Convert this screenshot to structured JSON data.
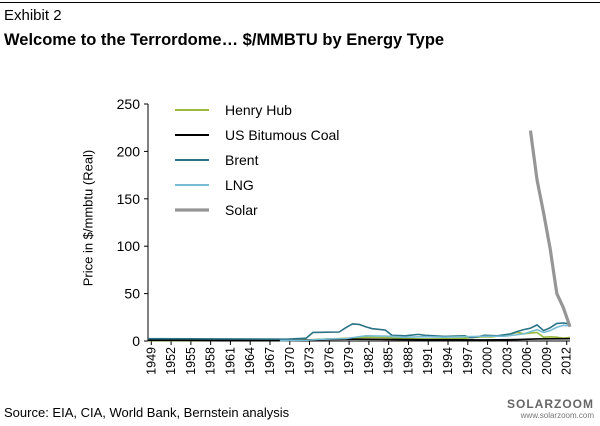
{
  "header": {
    "exhibit": "Exhibit 2",
    "title": "Welcome to the Terrordome… $/MMBTU by Energy Type"
  },
  "footer": {
    "source": "Source: EIA, CIA, World Bank, Bernstein analysis",
    "watermark_brand": "SOLARZOOM",
    "watermark_url": "www.solarzoom.com"
  },
  "chart_data": {
    "type": "line",
    "title": "Welcome to the Terrordome… $/MMBTU by Energy Type",
    "xlabel": "",
    "ylabel": "Price in $/mmbtu (Real)",
    "ylim": [
      0,
      250
    ],
    "yticks": [
      0,
      50,
      100,
      150,
      200,
      250
    ],
    "xlim": [
      1949,
      2013
    ],
    "xticks": [
      1949,
      1952,
      1955,
      1958,
      1961,
      1964,
      1967,
      1970,
      1973,
      1976,
      1979,
      1982,
      1985,
      1988,
      1991,
      1994,
      1997,
      2000,
      2003,
      2006,
      2009,
      2012
    ],
    "grid": false,
    "legend_position": "top-left",
    "series": [
      {
        "name": "Henry Hub",
        "color": "#9aba3c",
        "x": [
          1949,
          1955,
          1960,
          1965,
          1970,
          1973,
          1976,
          1979,
          1982,
          1985,
          1988,
          1991,
          1994,
          1997,
          2000,
          2001,
          2003,
          2005,
          2006,
          2008,
          2009,
          2010,
          2011,
          2012,
          2013
        ],
        "y": [
          0.5,
          0.6,
          0.8,
          0.9,
          1.0,
          1.2,
          2.0,
          2.8,
          3.9,
          3.6,
          2.6,
          2.1,
          2.3,
          2.9,
          4.5,
          4.3,
          6.0,
          9.0,
          7.7,
          9.0,
          4.0,
          4.4,
          4.0,
          2.8,
          3.8
        ]
      },
      {
        "name": "US Bitumous Coal",
        "color": "#000000",
        "x": [
          1949,
          1960,
          1970,
          1973,
          1976,
          1980,
          1985,
          1990,
          1995,
          2000,
          2005,
          2008,
          2010,
          2013
        ],
        "y": [
          0.9,
          0.8,
          0.8,
          1.0,
          1.6,
          1.9,
          1.7,
          1.4,
          1.2,
          1.1,
          1.5,
          2.2,
          2.3,
          2.4
        ]
      },
      {
        "name": "Brent",
        "color": "#2a7285",
        "x": [
          1949,
          1955,
          1960,
          1965,
          1970,
          1973,
          1974,
          1978,
          1979,
          1980,
          1981,
          1982,
          1983,
          1985,
          1986,
          1988,
          1990,
          1991,
          1994,
          1997,
          1998,
          1999,
          2000,
          2002,
          2003,
          2004,
          2005,
          2006,
          2007,
          2008,
          2009,
          2010,
          2011,
          2012,
          2013
        ],
        "y": [
          2.4,
          2.3,
          2.2,
          2.0,
          1.9,
          3.0,
          9.0,
          9.5,
          14.0,
          18.0,
          17.5,
          15.0,
          13.0,
          11.5,
          6.0,
          5.5,
          7.0,
          6.0,
          4.8,
          5.5,
          3.5,
          4.5,
          6.0,
          5.5,
          6.5,
          7.5,
          10.0,
          12.0,
          13.5,
          17.0,
          11.0,
          14.0,
          18.5,
          19.0,
          18.0
        ]
      },
      {
        "name": "LNG",
        "color": "#78bcd4",
        "x": [
          1969,
          1973,
          1976,
          1979,
          1982,
          1985,
          1988,
          1991,
          1994,
          1997,
          2000,
          2003,
          2006,
          2008,
          2009,
          2010,
          2011,
          2012,
          2013
        ],
        "y": [
          0.5,
          0.8,
          2.0,
          2.5,
          5.5,
          5.2,
          4.0,
          4.5,
          4.0,
          4.5,
          5.0,
          5.0,
          7.5,
          12.0,
          9.0,
          11.0,
          14.5,
          16.5,
          16.0
        ]
      },
      {
        "name": "Solar",
        "color": "#969696",
        "x": [
          2007,
          2008,
          2009,
          2010,
          2011,
          2012,
          2013
        ],
        "y": [
          222,
          170,
          135,
          97,
          50,
          35,
          15
        ]
      }
    ]
  }
}
